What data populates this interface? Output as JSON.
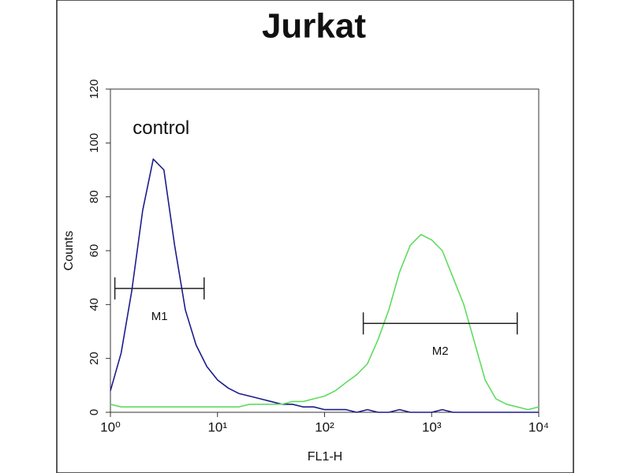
{
  "chart_data": {
    "type": "line",
    "title": "Jurkat",
    "x_label": "FL1-H",
    "y_label": "Counts",
    "log_x": true,
    "xlim": [
      1,
      10000
    ],
    "ylim": [
      0,
      120
    ],
    "xticks": [
      {
        "value": 1,
        "label": "10⁰"
      },
      {
        "value": 10,
        "label": "10¹"
      },
      {
        "value": 100,
        "label": "10²"
      },
      {
        "value": 1000,
        "label": "10³"
      },
      {
        "value": 10000,
        "label": "10⁴"
      }
    ],
    "yticks": [
      0,
      20,
      40,
      60,
      80,
      100,
      120
    ],
    "x": [
      1,
      1.26,
      1.58,
      2,
      2.51,
      3.16,
      3.98,
      5.01,
      6.31,
      7.94,
      10,
      12.6,
      15.8,
      20,
      25.1,
      31.6,
      39.8,
      50.1,
      63.1,
      79.4,
      100,
      126,
      158,
      200,
      251,
      316,
      398,
      501,
      631,
      794,
      1000,
      1259,
      1585,
      1995,
      2512,
      3162,
      3981,
      5012,
      6310,
      7943,
      10000
    ],
    "series": [
      {
        "name": "control",
        "color": "#1c1c8c",
        "values": [
          8,
          22,
          45,
          75,
          94,
          90,
          62,
          38,
          25,
          17,
          12,
          9,
          7,
          6,
          5,
          4,
          3,
          3,
          2,
          2,
          1,
          1,
          1,
          0,
          1,
          0,
          0,
          1,
          0,
          0,
          0,
          1,
          0,
          0,
          0,
          0,
          0,
          0,
          0,
          0,
          0
        ]
      },
      {
        "color": "#5fdc5f",
        "values": [
          3,
          2,
          2,
          2,
          2,
          2,
          2,
          2,
          2,
          2,
          2,
          2,
          2,
          3,
          3,
          3,
          3,
          4,
          4,
          5,
          6,
          8,
          11,
          14,
          18,
          27,
          38,
          52,
          62,
          66,
          64,
          60,
          50,
          40,
          26,
          12,
          5,
          3,
          2,
          1,
          2
        ]
      }
    ],
    "markers": [
      {
        "label": "M1",
        "x": [
          1.1,
          7.5
        ],
        "y": 46
      },
      {
        "label": "M2",
        "x": [
          230,
          6300
        ],
        "y": 33
      }
    ]
  }
}
